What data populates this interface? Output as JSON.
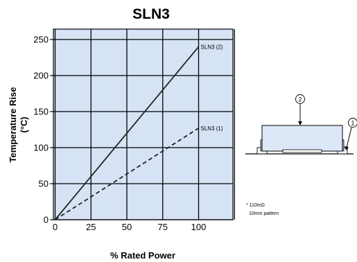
{
  "chart_data": {
    "type": "line",
    "title": "SLN3",
    "xlabel": "% Rated Power",
    "ylabel_line1": "Temperature Rise",
    "ylabel_line2": "(°C)",
    "xlim": [
      0,
      125
    ],
    "ylim": [
      0,
      260
    ],
    "x_ticks": [
      "0",
      "25",
      "50",
      "75",
      "100"
    ],
    "y_ticks": [
      "0",
      "50",
      "100",
      "150",
      "200",
      "250"
    ],
    "grid": true,
    "series": [
      {
        "name": "SLN3 (2)",
        "style": "solid",
        "x": [
          0,
          100
        ],
        "y": [
          0,
          240
        ]
      },
      {
        "name": "SLN3 (1)",
        "style": "dashed",
        "x": [
          0,
          100
        ],
        "y": [
          0,
          127
        ]
      }
    ]
  },
  "diagram": {
    "marker_1": "1",
    "marker_2": "2"
  },
  "footnote": {
    "line1": "* 110mΩ",
    "line2": "10mm pattern"
  },
  "colors": {
    "plot_background": "#d6e3f5",
    "grid": "#000000",
    "component_fill": "#dce8f7"
  }
}
